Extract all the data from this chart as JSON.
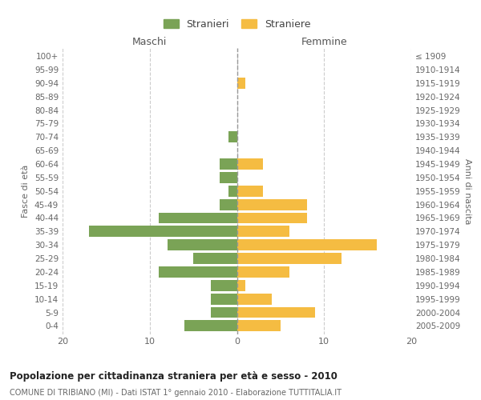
{
  "age_groups": [
    "0-4",
    "5-9",
    "10-14",
    "15-19",
    "20-24",
    "25-29",
    "30-34",
    "35-39",
    "40-44",
    "45-49",
    "50-54",
    "55-59",
    "60-64",
    "65-69",
    "70-74",
    "75-79",
    "80-84",
    "85-89",
    "90-94",
    "95-99",
    "100+"
  ],
  "birth_years": [
    "2005-2009",
    "2000-2004",
    "1995-1999",
    "1990-1994",
    "1985-1989",
    "1980-1984",
    "1975-1979",
    "1970-1974",
    "1965-1969",
    "1960-1964",
    "1955-1959",
    "1950-1954",
    "1945-1949",
    "1940-1944",
    "1935-1939",
    "1930-1934",
    "1925-1929",
    "1920-1924",
    "1915-1919",
    "1910-1914",
    "≤ 1909"
  ],
  "maschi": [
    6,
    3,
    3,
    3,
    9,
    5,
    8,
    17,
    9,
    2,
    1,
    2,
    2,
    0,
    1,
    0,
    0,
    0,
    0,
    0,
    0
  ],
  "femmine": [
    5,
    9,
    4,
    1,
    6,
    12,
    16,
    6,
    8,
    8,
    3,
    0,
    3,
    0,
    0,
    0,
    0,
    0,
    1,
    0,
    0
  ],
  "color_maschi": "#7aa356",
  "color_femmine": "#f5bc42",
  "title": "Popolazione per cittadinanza straniera per età e sesso - 2010",
  "subtitle": "COMUNE DI TRIBIANO (MI) - Dati ISTAT 1° gennaio 2010 - Elaborazione TUTTITALIA.IT",
  "ylabel_left": "Fasce di età",
  "ylabel_right": "Anni di nascita",
  "xlabel_maschi": "Maschi",
  "xlabel_femmine": "Femmine",
  "legend_maschi": "Stranieri",
  "legend_femmine": "Straniere",
  "xlim": 20,
  "bg_color": "#ffffff",
  "grid_color": "#cccccc",
  "bar_height": 0.82
}
